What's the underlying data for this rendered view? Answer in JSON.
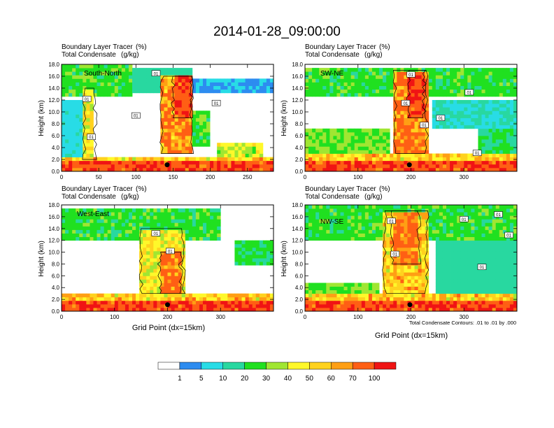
{
  "title": "2014-01-28_09:00:00",
  "panel_header": {
    "line1": "Boundary Layer Tracer",
    "line1_unit": "(%)",
    "line2": "Total Condensate",
    "line2_unit": "(g/kg)"
  },
  "contour_note": "Total Condensate Contours: .01 to .01 by .000",
  "x_axis_label": "Grid Point (dx=15km)",
  "y_axis_label": "Height (km)",
  "contour_label": "01",
  "colorbar": {
    "colors": [
      "#ffffff",
      "#2d8cf0",
      "#28dce6",
      "#28d8a0",
      "#20e020",
      "#a0e632",
      "#fff82a",
      "#ffd21e",
      "#ff9f14",
      "#ff5f14",
      "#f01414"
    ],
    "labels": [
      "1",
      "5",
      "10",
      "20",
      "30",
      "40",
      "50",
      "60",
      "70",
      "100"
    ]
  },
  "chart_data": [
    {
      "type": "heatmap",
      "panel": "South-North",
      "xlim": [
        0,
        285
      ],
      "ylim": [
        0,
        18
      ],
      "x_ticks": [
        "0",
        "50",
        "100",
        "150",
        "200",
        "250"
      ],
      "x_tick_values": [
        0,
        50,
        100,
        150,
        200,
        250
      ],
      "y_ticks": [
        "0.0",
        "2.0",
        "4.0",
        "6.0",
        "8.0",
        "10.0",
        "12.0",
        "14.0",
        "16.0",
        "18.0"
      ],
      "marker_x": 142,
      "marker_y": 1.1,
      "label_boxes": [
        [
          127,
          16.5
        ],
        [
          34,
          12.2
        ],
        [
          100,
          9.4
        ],
        [
          208,
          11.5
        ],
        [
          40,
          5.8
        ]
      ],
      "features": [
        {
          "x0": 0,
          "x1": 285,
          "y0": 0,
          "y1": 1.5,
          "v": 95
        },
        {
          "x0": 0,
          "x1": 285,
          "y0": 1.5,
          "y1": 2.6,
          "v": 55
        },
        {
          "x0": 0,
          "x1": 95,
          "y0": 12.5,
          "y1": 18,
          "v": 25
        },
        {
          "x0": 95,
          "x1": 175,
          "y0": 13,
          "y1": 17.5,
          "v": 15
        },
        {
          "x0": 175,
          "x1": 285,
          "y0": 13.5,
          "y1": 15.5,
          "v": 5
        },
        {
          "x0": 30,
          "x1": 45,
          "y0": 2,
          "y1": 14,
          "v": 45
        },
        {
          "x0": 135,
          "x1": 175,
          "y0": 3,
          "y1": 16,
          "v": 70
        },
        {
          "x0": 150,
          "x1": 175,
          "y0": 9,
          "y1": 16,
          "v": 92
        },
        {
          "x0": 175,
          "x1": 200,
          "y0": 4,
          "y1": 10,
          "v": 25
        },
        {
          "x0": 210,
          "x1": 270,
          "y0": 2.5,
          "y1": 5,
          "v": 40
        },
        {
          "x0": 0,
          "x1": 30,
          "y0": 2,
          "y1": 12,
          "v": 8
        }
      ]
    },
    {
      "type": "heatmap",
      "panel": "SW-NE",
      "xlim": [
        0,
        400
      ],
      "ylim": [
        0,
        18
      ],
      "x_ticks": [
        "0",
        "100",
        "200",
        "300"
      ],
      "x_tick_values": [
        0,
        100,
        200,
        300
      ],
      "y_ticks": [
        "0.0",
        "2.0",
        "4.0",
        "6.0",
        "8.0",
        "10.0",
        "12.0",
        "14.0",
        "16.0",
        "18.0"
      ],
      "marker_x": 197,
      "marker_y": 1.1,
      "label_boxes": [
        [
          200,
          16.3
        ],
        [
          310,
          13.3
        ],
        [
          190,
          11.5
        ],
        [
          225,
          7.8
        ],
        [
          256,
          9.0
        ],
        [
          325,
          3.1
        ]
      ],
      "features": [
        {
          "x0": 0,
          "x1": 400,
          "y0": 0,
          "y1": 1.5,
          "v": 95
        },
        {
          "x0": 0,
          "x1": 400,
          "y0": 1.5,
          "y1": 2.8,
          "v": 55
        },
        {
          "x0": 0,
          "x1": 400,
          "y0": 12.5,
          "y1": 17.5,
          "v": 25
        },
        {
          "x0": 170,
          "x1": 230,
          "y0": 3,
          "y1": 17,
          "v": 72
        },
        {
          "x0": 195,
          "x1": 225,
          "y0": 9,
          "y1": 17,
          "v": 92
        },
        {
          "x0": 0,
          "x1": 160,
          "y0": 2.5,
          "y1": 7,
          "v": 30
        },
        {
          "x0": 330,
          "x1": 400,
          "y0": 3,
          "y1": 7,
          "v": 20
        },
        {
          "x0": 240,
          "x1": 400,
          "y0": 7,
          "y1": 12,
          "v": 10
        }
      ]
    },
    {
      "type": "heatmap",
      "panel": "West-East",
      "xlim": [
        0,
        400
      ],
      "ylim": [
        0,
        18
      ],
      "x_ticks": [
        "0",
        "100",
        "200",
        "300"
      ],
      "x_tick_values": [
        0,
        100,
        200,
        300
      ],
      "y_ticks": [
        "0.0",
        "2.0",
        "4.0",
        "6.0",
        "8.0",
        "10.0",
        "12.0",
        "14.0",
        "16.0",
        "18.0"
      ],
      "marker_x": 200,
      "marker_y": 1.1,
      "label_boxes": [
        [
          178,
          13.2
        ],
        [
          205,
          10.2
        ]
      ],
      "features": [
        {
          "x0": 0,
          "x1": 400,
          "y0": 0,
          "y1": 1.5,
          "v": 95
        },
        {
          "x0": 0,
          "x1": 400,
          "y0": 1.5,
          "y1": 3,
          "v": 55
        },
        {
          "x0": 0,
          "x1": 300,
          "y0": 12,
          "y1": 17.5,
          "v": 25
        },
        {
          "x0": 150,
          "x1": 230,
          "y0": 3,
          "y1": 14,
          "v": 45
        },
        {
          "x0": 185,
          "x1": 225,
          "y0": 3,
          "y1": 10,
          "v": 75
        },
        {
          "x0": 325,
          "x1": 400,
          "y0": 8,
          "y1": 12,
          "v": 22
        }
      ]
    },
    {
      "type": "heatmap",
      "panel": "NW-SE",
      "xlim": [
        0,
        400
      ],
      "ylim": [
        0,
        18
      ],
      "x_ticks": [
        "0",
        "100",
        "200",
        "300"
      ],
      "x_tick_values": [
        0,
        100,
        200,
        300
      ],
      "y_ticks": [
        "0.0",
        "2.0",
        "4.0",
        "6.0",
        "8.0",
        "10.0",
        "12.0",
        "14.0",
        "16.0",
        "18.0"
      ],
      "marker_x": 198,
      "marker_y": 1.1,
      "label_boxes": [
        [
          163,
          15.3
        ],
        [
          300,
          15.6
        ],
        [
          365,
          16.4
        ],
        [
          385,
          12.9
        ],
        [
          170,
          9.7
        ],
        [
          334,
          7.5
        ]
      ],
      "features": [
        {
          "x0": 0,
          "x1": 400,
          "y0": 0,
          "y1": 1.5,
          "v": 95
        },
        {
          "x0": 0,
          "x1": 400,
          "y0": 1.5,
          "y1": 3,
          "v": 55
        },
        {
          "x0": 0,
          "x1": 400,
          "y0": 12,
          "y1": 18,
          "v": 25
        },
        {
          "x0": 150,
          "x1": 230,
          "y0": 3,
          "y1": 17,
          "v": 55
        },
        {
          "x0": 165,
          "x1": 215,
          "y0": 8,
          "y1": 17,
          "v": 75
        },
        {
          "x0": 250,
          "x1": 400,
          "y0": 2.5,
          "y1": 12,
          "v": 15
        },
        {
          "x0": 0,
          "x1": 140,
          "y0": 2.5,
          "y1": 5,
          "v": 30
        }
      ]
    }
  ]
}
